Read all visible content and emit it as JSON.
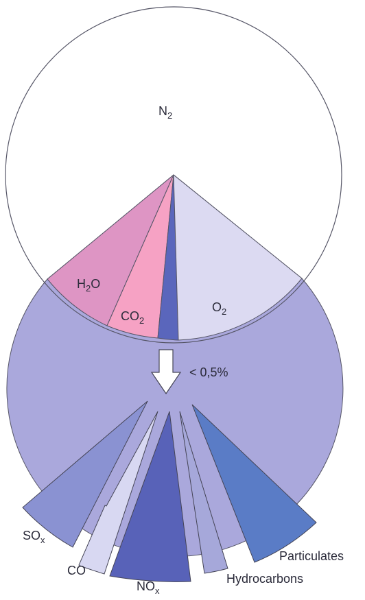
{
  "chart_data": [
    {
      "type": "pie",
      "title": "",
      "slices": [
        {
          "label": "N",
          "sub": "2",
          "value": 71,
          "color": "#aaa8dc"
        },
        {
          "label": "H",
          "sub": "2",
          "suffix": "O",
          "value": 8.5,
          "color": "#de95c4"
        },
        {
          "label": "CO",
          "sub": "2",
          "value": 6.0,
          "color": "#f6a2c4"
        },
        {
          "label": "",
          "value": 2.2,
          "color": "#5a66bc"
        },
        {
          "label": "O",
          "sub": "2",
          "value": 12.3,
          "color": "#dcdaf2"
        }
      ],
      "arrow_label": "< 0,5%"
    },
    {
      "type": "pie",
      "title": "",
      "slices": [
        {
          "label": "SO",
          "sub": "x",
          "color": "#8a92d2"
        },
        {
          "label": "CO",
          "color": "#d8d8f2"
        },
        {
          "label": "NO",
          "sub": "x",
          "color": "#5862b8"
        },
        {
          "label": "Hydrocarbons",
          "color": "#a6a8da"
        },
        {
          "label": "Particulates",
          "color": "#5a7cc6"
        }
      ]
    }
  ]
}
